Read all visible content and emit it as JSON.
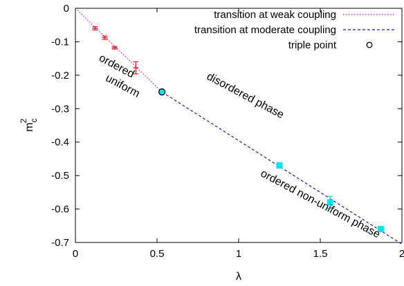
{
  "chart_data": {
    "type": "scatter",
    "title": "",
    "xlabel": "λ",
    "ylabel": {
      "base": "m",
      "sub": "c",
      "sup": "2"
    },
    "xlim": [
      0,
      2
    ],
    "ylim": [
      -0.7,
      0
    ],
    "x_ticks": [
      0,
      0.5,
      1,
      1.5,
      2
    ],
    "x_tick_labels": [
      "0",
      "0.5",
      "1",
      "1.5",
      "2"
    ],
    "y_ticks": [
      0,
      -0.1,
      -0.2,
      -0.3,
      -0.4,
      -0.5,
      -0.6,
      -0.7
    ],
    "y_tick_labels": [
      "0",
      "-0.1",
      "-0.2",
      "-0.3",
      "-0.4",
      "-0.5",
      "-0.6",
      "-0.7"
    ],
    "grid": false,
    "legend_position": "top-right",
    "series": [
      {
        "name": "transition at weak coupling",
        "style": "dotted-line",
        "color": "#e000c0",
        "x": [
          0,
          0.53
        ],
        "y": [
          0,
          -0.25
        ]
      },
      {
        "name": "transition at moderate coupling",
        "style": "dashed-line",
        "color": "#1a1aa6",
        "x": [
          0.53,
          2.0
        ],
        "y": [
          -0.25,
          -0.705
        ]
      },
      {
        "name": "triple point",
        "style": "open-circle",
        "color": "#000000",
        "x": [
          0.53
        ],
        "y": [
          -0.25
        ]
      },
      {
        "name": "",
        "style": "cross-errorbar",
        "color": "#d62020",
        "x": [
          0.12,
          0.18,
          0.24,
          0.37
        ],
        "y": [
          -0.06,
          -0.088,
          -0.118,
          -0.178
        ],
        "yerr": [
          0.005,
          0.005,
          0.004,
          0.018
        ]
      },
      {
        "name": "",
        "style": "filled-square-errorbar",
        "color": "#00e5ee",
        "x": [
          1.25,
          1.56,
          1.87
        ],
        "y": [
          -0.47,
          -0.58,
          -0.66
        ],
        "yerr": [
          0.007,
          0.018,
          0.006
        ]
      }
    ],
    "annotations": [
      {
        "text": "ordered",
        "x": 0.14,
        "y": -0.155,
        "angle": 28
      },
      {
        "text": "uniform",
        "x": 0.18,
        "y": -0.215,
        "angle": 28
      },
      {
        "text": "disordered phase",
        "x": 0.8,
        "y": -0.21,
        "angle": 28
      },
      {
        "text": "ordered non-uniform phase",
        "x": 1.13,
        "y": -0.5,
        "angle": 28
      }
    ]
  }
}
